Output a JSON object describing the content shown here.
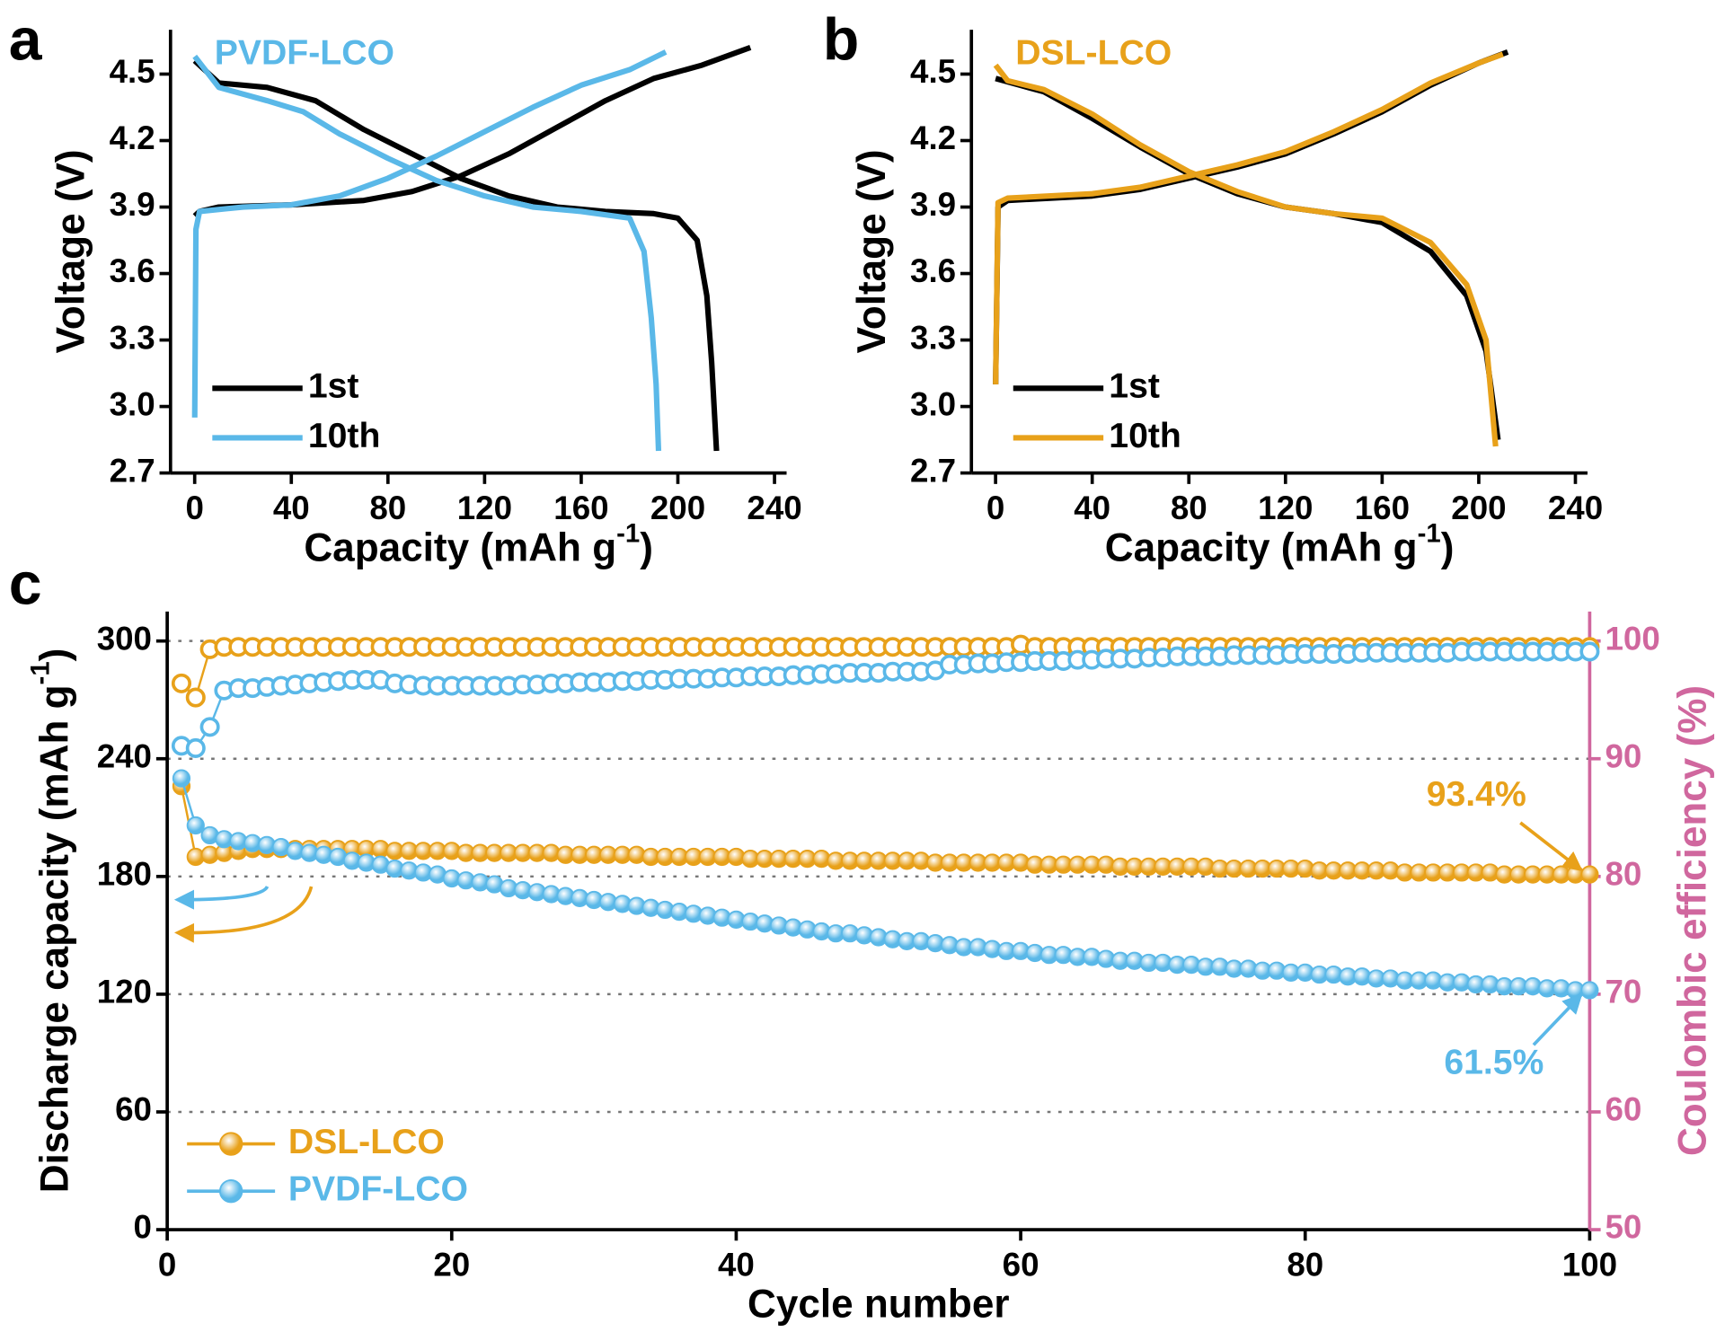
{
  "chart_data": [
    {
      "type": "line",
      "panel_label": "a",
      "title": "PVDF-LCO",
      "title_color": "#5ab8e8",
      "x_label": {
        "text": "Capacity (mAh g",
        "sup": "-1",
        "end": ")"
      },
      "y_label": "Voltage (V)",
      "xlim": [
        -10,
        245
      ],
      "ylim": [
        2.7,
        4.7
      ],
      "xticks": [
        0,
        40,
        80,
        120,
        160,
        200,
        240
      ],
      "yticks": [
        2.7,
        {
          "value": 3.0,
          "label": "3.0"
        },
        3.3,
        3.6,
        3.9,
        4.2,
        4.5
      ],
      "legend": "lower left",
      "series": [
        {
          "name": "1st",
          "color": "#000000",
          "curves": [
            {
              "x": [
                0,
                2,
                10,
                40,
                70,
                90,
                110,
                130,
                150,
                170,
                190,
                210,
                230
              ],
              "values": [
                3.86,
                3.88,
                3.9,
                3.91,
                3.93,
                3.97,
                4.04,
                4.14,
                4.26,
                4.38,
                4.48,
                4.54,
                4.62
              ]
            },
            {
              "x": [
                0,
                10,
                30,
                50,
                70,
                90,
                110,
                130,
                150,
                170,
                190,
                200,
                208,
                212,
                214,
                216
              ],
              "values": [
                4.56,
                4.46,
                4.44,
                4.38,
                4.25,
                4.14,
                4.03,
                3.95,
                3.9,
                3.88,
                3.87,
                3.85,
                3.75,
                3.5,
                3.2,
                2.8
              ]
            }
          ]
        },
        {
          "name": "10th",
          "color": "#5ab8e8",
          "curves": [
            {
              "x": [
                0,
                0.5,
                2,
                20,
                40,
                60,
                80,
                100,
                120,
                140,
                160,
                180,
                195
              ],
              "values": [
                2.95,
                3.8,
                3.88,
                3.9,
                3.91,
                3.95,
                4.03,
                4.13,
                4.24,
                4.35,
                4.45,
                4.52,
                4.6
              ]
            },
            {
              "x": [
                0,
                10,
                30,
                45,
                60,
                80,
                100,
                120,
                140,
                160,
                180,
                186,
                189,
                191,
                192
              ],
              "values": [
                4.58,
                4.44,
                4.38,
                4.33,
                4.23,
                4.12,
                4.02,
                3.95,
                3.9,
                3.88,
                3.85,
                3.7,
                3.4,
                3.1,
                2.8
              ]
            }
          ]
        }
      ]
    },
    {
      "type": "line",
      "panel_label": "b",
      "title": "DSL-LCO",
      "title_color": "#e8a11a",
      "x_label": {
        "text": "Capacity (mAh g",
        "sup": "-1",
        "end": ")"
      },
      "y_label": "Voltage (V)",
      "xlim": [
        -10,
        245
      ],
      "ylim": [
        2.7,
        4.7
      ],
      "xticks": [
        0,
        40,
        80,
        120,
        160,
        200,
        240
      ],
      "yticks": [
        2.7,
        {
          "value": 3.0,
          "label": "3.0"
        },
        3.3,
        3.6,
        3.9,
        4.2,
        4.5
      ],
      "legend": "lower left",
      "series": [
        {
          "name": "1st",
          "color": "#000000",
          "curves": [
            {
              "x": [
                0,
                1,
                5,
                40,
                60,
                80,
                100,
                120,
                140,
                160,
                180,
                200,
                212
              ],
              "values": [
                3.1,
                3.9,
                3.93,
                3.95,
                3.98,
                4.03,
                4.08,
                4.14,
                4.23,
                4.33,
                4.45,
                4.55,
                4.6
              ]
            },
            {
              "x": [
                0,
                10,
                20,
                40,
                60,
                80,
                100,
                120,
                140,
                160,
                180,
                195,
                203,
                208
              ],
              "values": [
                4.48,
                4.45,
                4.42,
                4.3,
                4.17,
                4.05,
                3.96,
                3.9,
                3.87,
                3.83,
                3.7,
                3.5,
                3.25,
                2.85
              ]
            }
          ]
        },
        {
          "name": "10th",
          "color": "#e8a11a",
          "curves": [
            {
              "x": [
                0,
                1,
                5,
                40,
                60,
                80,
                100,
                120,
                140,
                160,
                180,
                200,
                210
              ],
              "values": [
                3.1,
                3.92,
                3.94,
                3.96,
                3.99,
                4.04,
                4.09,
                4.15,
                4.24,
                4.34,
                4.46,
                4.55,
                4.59
              ]
            },
            {
              "x": [
                0,
                5,
                20,
                40,
                60,
                80,
                100,
                120,
                140,
                160,
                180,
                195,
                203,
                207
              ],
              "values": [
                4.54,
                4.47,
                4.43,
                4.32,
                4.18,
                4.06,
                3.97,
                3.9,
                3.87,
                3.85,
                3.74,
                3.55,
                3.3,
                2.82
              ]
            }
          ]
        }
      ]
    },
    {
      "type": "cycle",
      "panel_label": "c",
      "x_label": "Cycle number",
      "y_label": {
        "text": "Discharge capacity (mAh g",
        "sup": "-1",
        "end": ")"
      },
      "y2_label": "Coulombic efficiency (%)",
      "y2_color": "#d0679e",
      "xlim": [
        0,
        100
      ],
      "ylim": [
        0,
        315
      ],
      "y2lim": [
        50,
        102.5
      ],
      "xticks": [
        0,
        20,
        40,
        60,
        80,
        100
      ],
      "yticks": [
        0,
        60,
        120,
        180,
        240,
        300
      ],
      "y2ticks": [
        50,
        60,
        70,
        80,
        90,
        100
      ],
      "grid": true,
      "legend": "lower left",
      "annotations": [
        {
          "text": "93.4%",
          "color": "#e8a11a"
        },
        {
          "text": "61.5%",
          "color": "#5ab8e8"
        }
      ],
      "x": [
        1,
        2,
        3,
        4,
        5,
        6,
        7,
        8,
        9,
        10,
        11,
        12,
        13,
        14,
        15,
        16,
        17,
        18,
        19,
        20,
        21,
        22,
        23,
        24,
        25,
        26,
        27,
        28,
        29,
        30,
        31,
        32,
        33,
        34,
        35,
        36,
        37,
        38,
        39,
        40,
        41,
        42,
        43,
        44,
        45,
        46,
        47,
        48,
        49,
        50,
        51,
        52,
        53,
        54,
        55,
        56,
        57,
        58,
        59,
        60,
        61,
        62,
        63,
        64,
        65,
        66,
        67,
        68,
        69,
        70,
        71,
        72,
        73,
        74,
        75,
        76,
        77,
        78,
        79,
        80,
        81,
        82,
        83,
        84,
        85,
        86,
        87,
        88,
        89,
        90,
        91,
        92,
        93,
        94,
        95,
        96,
        97,
        98,
        99,
        100
      ],
      "series": [
        {
          "name": "DSL-LCO",
          "color": "#e8a11a",
          "axis": "y",
          "values": [
            226,
            190,
            191,
            192,
            193,
            194,
            194,
            194,
            194,
            194,
            194,
            194,
            194,
            194,
            194,
            193,
            193,
            193,
            193,
            193,
            192,
            192,
            192,
            192,
            192,
            192,
            192,
            191,
            191,
            191,
            191,
            191,
            191,
            190,
            190,
            190,
            190,
            190,
            190,
            190,
            189,
            189,
            189,
            189,
            189,
            189,
            188,
            188,
            188,
            188,
            188,
            188,
            188,
            187,
            187,
            187,
            187,
            187,
            187,
            187,
            186,
            186,
            186,
            186,
            186,
            186,
            185,
            185,
            185,
            185,
            185,
            185,
            185,
            184,
            184,
            184,
            184,
            184,
            184,
            184,
            183,
            183,
            183,
            183,
            183,
            183,
            182,
            182,
            182,
            182,
            182,
            182,
            182,
            181,
            181,
            181,
            181,
            181,
            181,
            181
          ]
        },
        {
          "name": "PVDF-LCO",
          "color": "#5ab8e8",
          "axis": "y",
          "values": [
            230,
            206,
            201,
            199,
            198,
            197,
            196,
            195,
            193,
            192,
            191,
            190,
            188,
            187,
            186,
            184,
            183,
            182,
            181,
            179,
            178,
            177,
            176,
            174,
            173,
            172,
            171,
            170,
            169,
            168,
            167,
            166,
            165,
            164,
            163,
            162,
            161,
            160,
            159,
            158,
            157,
            156,
            155,
            154,
            153,
            152,
            151,
            151,
            150,
            149,
            148,
            147,
            147,
            146,
            145,
            144,
            144,
            143,
            142,
            142,
            141,
            140,
            140,
            139,
            139,
            138,
            137,
            137,
            136,
            136,
            135,
            135,
            134,
            134,
            133,
            133,
            132,
            132,
            131,
            131,
            130,
            130,
            129,
            129,
            128,
            128,
            127,
            127,
            127,
            126,
            126,
            125,
            125,
            124,
            124,
            124,
            123,
            123,
            122,
            122
          ]
        },
        {
          "color": "#e8a11a",
          "axis": "y2",
          "marker": "hollow",
          "values": [
            96.4,
            95.2,
            99.3,
            99.5,
            99.5,
            99.5,
            99.5,
            99.5,
            99.5,
            99.5,
            99.5,
            99.5,
            99.5,
            99.5,
            99.5,
            99.5,
            99.5,
            99.5,
            99.5,
            99.5,
            99.5,
            99.5,
            99.5,
            99.5,
            99.5,
            99.5,
            99.5,
            99.5,
            99.5,
            99.5,
            99.5,
            99.5,
            99.5,
            99.5,
            99.5,
            99.5,
            99.5,
            99.5,
            99.5,
            99.5,
            99.5,
            99.5,
            99.5,
            99.5,
            99.5,
            99.5,
            99.5,
            99.5,
            99.5,
            99.5,
            99.5,
            99.5,
            99.5,
            99.5,
            99.5,
            99.5,
            99.5,
            99.5,
            99.5,
            99.7,
            99.5,
            99.5,
            99.5,
            99.5,
            99.5,
            99.5,
            99.5,
            99.5,
            99.5,
            99.5,
            99.5,
            99.5,
            99.5,
            99.5,
            99.5,
            99.5,
            99.5,
            99.5,
            99.5,
            99.5,
            99.5,
            99.5,
            99.5,
            99.5,
            99.5,
            99.5,
            99.5,
            99.5,
            99.5,
            99.5,
            99.5,
            99.5,
            99.5,
            99.5,
            99.5,
            99.5,
            99.5,
            99.5,
            99.5,
            99.5
          ]
        },
        {
          "color": "#5ab8e8",
          "axis": "y2",
          "marker": "hollow",
          "values": [
            91.1,
            90.9,
            92.7,
            95.8,
            96.0,
            96.0,
            96.1,
            96.2,
            96.3,
            96.4,
            96.5,
            96.6,
            96.7,
            96.7,
            96.7,
            96.4,
            96.3,
            96.2,
            96.2,
            96.2,
            96.2,
            96.2,
            96.2,
            96.2,
            96.3,
            96.3,
            96.4,
            96.4,
            96.5,
            96.5,
            96.5,
            96.6,
            96.6,
            96.7,
            96.7,
            96.8,
            96.8,
            96.8,
            96.9,
            96.9,
            97.0,
            97.0,
            97.0,
            97.1,
            97.1,
            97.2,
            97.2,
            97.3,
            97.3,
            97.3,
            97.4,
            97.4,
            97.4,
            97.5,
            98.0,
            98.0,
            98.1,
            98.1,
            98.2,
            98.2,
            98.3,
            98.3,
            98.3,
            98.4,
            98.4,
            98.5,
            98.5,
            98.5,
            98.6,
            98.6,
            98.7,
            98.7,
            98.7,
            98.7,
            98.8,
            98.8,
            98.8,
            98.8,
            98.9,
            98.9,
            98.9,
            98.9,
            98.9,
            99.0,
            99.0,
            99.0,
            99.0,
            99.0,
            99.0,
            99.0,
            99.1,
            99.1,
            99.1,
            99.1,
            99.1,
            99.1,
            99.1,
            99.1,
            99.1,
            99.1
          ]
        }
      ]
    }
  ]
}
